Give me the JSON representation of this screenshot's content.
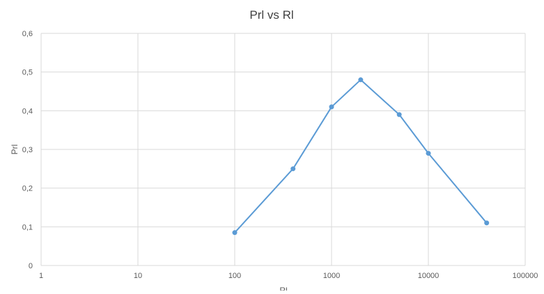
{
  "chart_data": {
    "type": "scatter",
    "title": "Prl vs Rl",
    "xlabel": "Rl",
    "ylabel": "Prl",
    "x_scale": "log",
    "xlim": [
      1,
      100000
    ],
    "ylim": [
      0,
      0.6
    ],
    "x_ticks": [
      "1",
      "10",
      "100",
      "1000",
      "10000",
      "100000"
    ],
    "y_ticks": [
      "0",
      "0,1",
      "0,2",
      "0,3",
      "0,4",
      "0,5",
      "0,6"
    ],
    "grid": true,
    "legend": "none",
    "series": [
      {
        "x": [
          100,
          400,
          1000,
          2000,
          5000,
          10000,
          40000
        ],
        "y": [
          0.085,
          0.25,
          0.41,
          0.48,
          0.39,
          0.29,
          0.11
        ],
        "lines": true,
        "markers": true
      }
    ],
    "colors": {
      "series": "#5b9bd5",
      "grid": "#d9d9d9",
      "text": "#595959",
      "title": "#404040"
    }
  }
}
